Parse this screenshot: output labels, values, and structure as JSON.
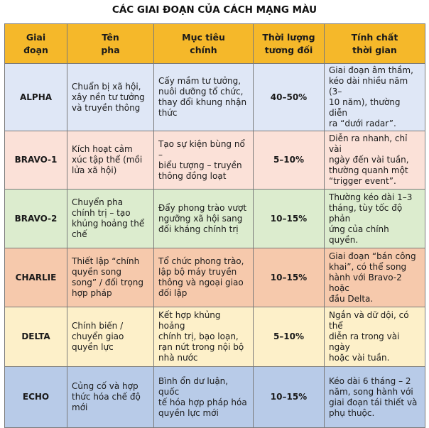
{
  "title": "CÁC GIAI ĐOẠN CỦA CÁCH MẠNG MÀU",
  "headers": [
    "Giai\nđoạn",
    "Tên\npha",
    "Mục tiêu\nchính",
    "Thời lượng\ntương đối",
    "Tính chất\nthời gian"
  ],
  "rows": [
    {
      "phase": "ALPHA",
      "name": "Chuẩn bị xã hội,\nxây nền tư tưởng\nvà truyền thông",
      "goal": "Cấy mầm tư tưởng,\nnuôi dưỡng tổ chức,\nthay đổi khung nhận\nthức",
      "duration": "40–50%",
      "timing": "Giai đoạn âm thầm,\nkéo dài nhiều năm (3–\n10 năm), thường diễn\nra “dưới radar”."
    },
    {
      "phase": "BRAVO-1",
      "name": "Kích hoạt cảm\nxúc tập thể (mồi\nlửa xã hội)",
      "goal": "Tạo sự kiện bùng nổ –\nbiểu tượng – truyền\nthông đồng loạt",
      "duration": "5–10%",
      "timing": "Diễn ra nhanh, chỉ vài\nngày đến vài tuần,\nthường quanh một\n“trigger event”."
    },
    {
      "phase": "BRAVO-2",
      "name": "Chuyển pha\nchính trị – tạo\nkhủng hoảng thể\nchế",
      "goal": "Đẩy phong trào vượt\nngưỡng xã hội sang\nđối kháng chính trị",
      "duration": "10–15%",
      "timing": "Thường kéo dài 1–3\ntháng, tùy tốc độ phản\nứng của chính quyền."
    },
    {
      "phase": "CHARLIE",
      "name": "Thiết lập “chính\nquyền song\nsong” / đối trọng\nhợp pháp",
      "goal": "Tổ chức phong trào,\nlập bộ máy truyền\nthông và ngoại giao\nđối lập",
      "duration": "10–15%",
      "timing": "Giai đoạn “bán công\nkhai”, có thể song\nhành với Bravo-2 hoặc\nđầu Delta."
    },
    {
      "phase": "DELTA",
      "name": "Chính biến /\nchuyển giao\nquyền lực",
      "goal": "Kết hợp khủng hoảng\nchính trị, bạo loạn,\nrạn nứt trong nội bộ\nnhà nước",
      "duration": "5–10%",
      "timing": "Ngắn và dữ dội, có thể\ndiễn ra trong vài ngày\nhoặc vài tuần."
    },
    {
      "phase": "ECHO",
      "name": "Củng cố và hợp\nthức hóa chế độ\nmới",
      "goal": "Bình ổn dư luận, quốc\ntế hóa hợp pháp hóa\nquyền lực mới",
      "duration": "10–15%",
      "timing": "Kéo dài 6 tháng – 2\nnăm, song hành với\ngiai đoạn tái thiết và\nphụ thuộc."
    }
  ]
}
